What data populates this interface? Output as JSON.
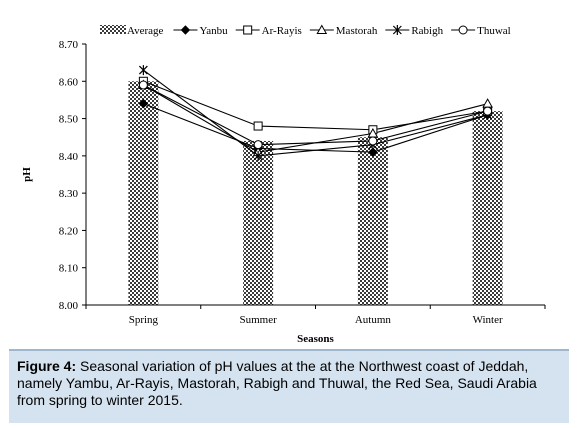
{
  "caption": {
    "label": "Figure 4:",
    "text": " Seasonal variation of pH values at the at the Northwest coast of Jeddah, namely Yambu, Ar-Rayis, Mastorah, Rabigh and Thuwal, the Red Sea, Saudi Arabia from spring to winter 2015."
  },
  "chart_data": {
    "type": "bar",
    "categories": [
      "Spring",
      "Summer",
      "Autumn",
      "Winter"
    ],
    "xlabel": "Seasons",
    "ylabel": "pH",
    "ylim": [
      8.0,
      8.7
    ],
    "yticks": [
      "8.00",
      "8.10",
      "8.20",
      "8.30",
      "8.40",
      "8.50",
      "8.60",
      "8.70"
    ],
    "grid": false,
    "legend_position": "top",
    "bar_series": {
      "name": "Average",
      "values": [
        8.6,
        8.44,
        8.45,
        8.52
      ],
      "pattern": "checkered"
    },
    "line_series": [
      {
        "name": "Yanbu",
        "marker": "filled-diamond",
        "values": [
          8.54,
          8.42,
          8.41,
          8.51
        ]
      },
      {
        "name": "Ar-Rayis",
        "marker": "open-square",
        "values": [
          8.6,
          8.48,
          8.47,
          8.52
        ]
      },
      {
        "name": "Mastorah",
        "marker": "open-triangle",
        "values": [
          8.59,
          8.41,
          8.46,
          8.54
        ]
      },
      {
        "name": "Rabigh",
        "marker": "asterisk",
        "values": [
          8.63,
          8.4,
          8.43,
          8.51
        ]
      },
      {
        "name": "Thuwal",
        "marker": "open-circle",
        "values": [
          8.59,
          8.43,
          8.44,
          8.52
        ]
      }
    ]
  }
}
